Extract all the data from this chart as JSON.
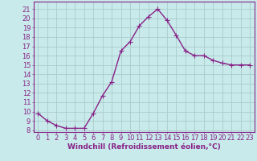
{
  "x": [
    0,
    1,
    2,
    3,
    4,
    5,
    6,
    7,
    8,
    9,
    10,
    11,
    12,
    13,
    14,
    15,
    16,
    17,
    18,
    19,
    20,
    21,
    22,
    23
  ],
  "y": [
    9.8,
    9.0,
    8.5,
    8.2,
    8.2,
    8.2,
    9.8,
    11.7,
    13.2,
    16.5,
    17.5,
    19.2,
    20.2,
    21.0,
    19.8,
    18.2,
    16.5,
    16.0,
    16.0,
    15.5,
    15.2,
    15.0,
    15.0,
    15.0
  ],
  "line_color": "#882288",
  "marker": "+",
  "marker_size": 4,
  "bg_color": "#c8eaea",
  "grid_color": "#aacccc",
  "xlabel": "Windchill (Refroidissement éolien,°C)",
  "ytick_min": 8,
  "ytick_max": 21,
  "xlim": [
    -0.5,
    23.5
  ],
  "ylim": [
    7.8,
    21.8
  ],
  "xlabel_fontsize": 6.5,
  "tick_fontsize": 6,
  "line_width": 1.0,
  "spine_color": "#882288"
}
